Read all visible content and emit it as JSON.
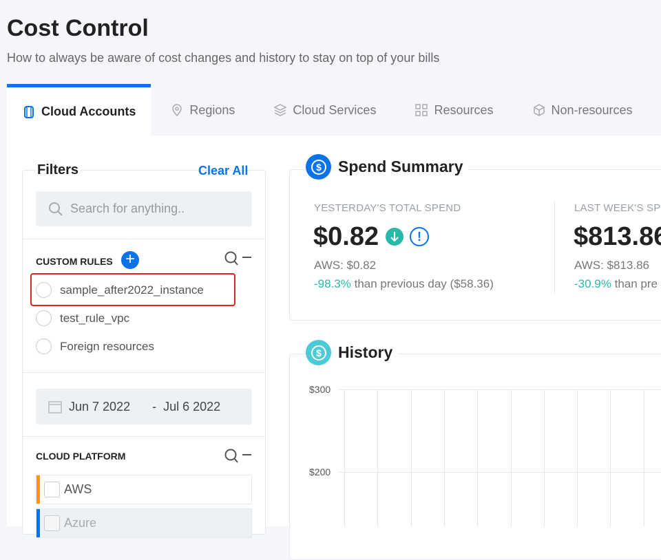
{
  "header": {
    "title": "Cost Control",
    "subtitle": "How to always be aware of cost changes and history to stay on top of your bills"
  },
  "tabs": [
    {
      "label": "Cloud Accounts",
      "icon": "cloud-accounts-icon",
      "active": true
    },
    {
      "label": "Regions",
      "icon": "map-pin-icon"
    },
    {
      "label": "Cloud Services",
      "icon": "layers-icon"
    },
    {
      "label": "Resources",
      "icon": "grid-icon"
    },
    {
      "label": "Non-resources",
      "icon": "box-icon"
    }
  ],
  "filters": {
    "title": "Filters",
    "clear_all": "Clear All",
    "search_placeholder": "Search for anything..",
    "custom_rules": {
      "title": "CUSTOM RULES",
      "items": [
        "sample_after2022_instance",
        "test_rule_vpc",
        "Foreign resources"
      ],
      "highlighted": "sample_after2022_instance"
    },
    "date_range": {
      "start": "Jun 7 2022",
      "separator": "-",
      "end": "Jul 6 2022"
    },
    "cloud_platform": {
      "title": "CLOUD PLATFORM",
      "items": [
        {
          "label": "AWS",
          "color": "#ff9900"
        },
        {
          "label": "Azure",
          "color": "#0b73e8"
        }
      ]
    }
  },
  "spend_summary": {
    "title": "Spend Summary",
    "yesterday": {
      "label": "YESTERDAY'S TOTAL SPEND",
      "value": "$0.82",
      "aws": "AWS: $0.82",
      "change": "-98.3%",
      "change_text": "than previous day ($58.36)"
    },
    "last_week": {
      "label": "LAST WEEK'S SP",
      "value": "$813.86",
      "aws": "AWS: $813.86",
      "change": "-30.9%",
      "change_text": "than pre"
    }
  },
  "history": {
    "title": "History",
    "y_ticks": [
      "$300",
      "$200"
    ]
  },
  "colors": {
    "accent": "#0b73e8",
    "positive": "#2ab8a8",
    "highlight": "#e52222"
  }
}
